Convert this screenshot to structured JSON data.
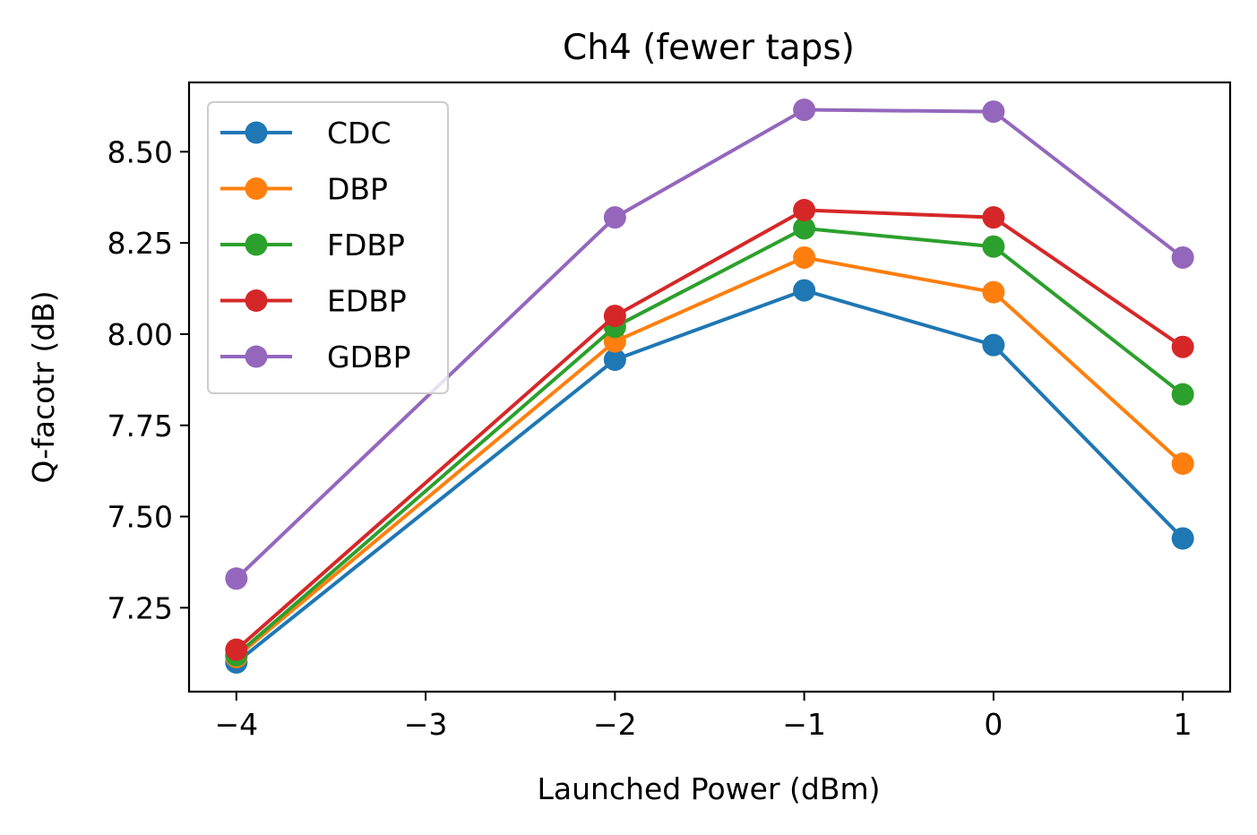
{
  "chart_data": {
    "type": "line",
    "title": "Ch4 (fewer taps)",
    "xlabel": "Launched Power (dBm)",
    "ylabel": "Q-facotr (dB)",
    "x": [
      -4,
      -2,
      -1,
      0,
      1
    ],
    "xlim": [
      -4.25,
      1.25
    ],
    "ylim": [
      7.02,
      8.69
    ],
    "xticks": [
      -4,
      -3,
      -2,
      -1,
      0,
      1
    ],
    "xtick_labels": [
      "−4",
      "−3",
      "−2",
      "−1",
      "0",
      "1"
    ],
    "yticks": [
      7.25,
      7.5,
      7.75,
      8.0,
      8.25,
      8.5
    ],
    "ytick_labels": [
      "7.25",
      "7.50",
      "7.75",
      "8.00",
      "8.25",
      "8.50"
    ],
    "grid": false,
    "legend_position": "upper-left",
    "series": [
      {
        "name": "CDC",
        "color": "#1f77b4",
        "values": [
          7.1,
          7.93,
          8.12,
          7.97,
          7.44
        ]
      },
      {
        "name": "DBP",
        "color": "#ff7f0e",
        "values": [
          7.115,
          7.98,
          8.21,
          8.115,
          7.645
        ]
      },
      {
        "name": "FDBP",
        "color": "#2ca02c",
        "values": [
          7.12,
          8.02,
          8.29,
          8.24,
          7.835
        ]
      },
      {
        "name": "EDBP",
        "color": "#d62728",
        "values": [
          7.135,
          8.05,
          8.34,
          8.32,
          7.965
        ]
      },
      {
        "name": "GDBP",
        "color": "#9467bd",
        "values": [
          7.33,
          8.32,
          8.615,
          8.61,
          8.21
        ]
      }
    ]
  }
}
